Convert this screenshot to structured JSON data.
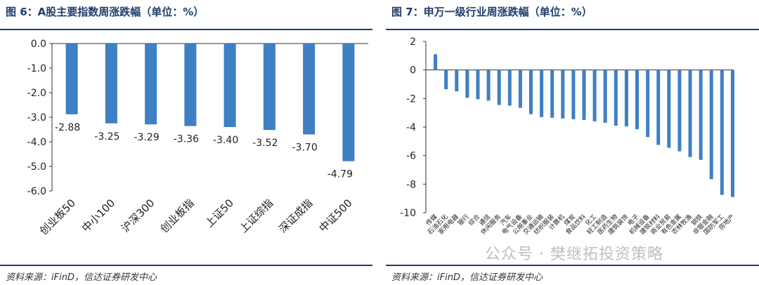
{
  "left_panel": {
    "title": "图 6：A股主要指数周涨跌幅（单位：%）",
    "source": "资料来源：iFinD，信达证券研发中心"
  },
  "right_panel": {
    "title": "图 7：申万一级行业周涨跌幅（单位：%）",
    "source": "资料来源：iFinD，信达证券研发中心"
  },
  "watermark": "公众号 · 樊继拓投资策略",
  "colors": {
    "bar": "#3f7fc3",
    "accent": "#1f3d6b",
    "axis": "#333333"
  },
  "chart_data": [
    {
      "type": "bar",
      "title": "图 6：A股主要指数周涨跌幅（单位：%）",
      "categories": [
        "创业板50",
        "中小100",
        "沪深300",
        "创业板指",
        "上证50",
        "上证综指",
        "深证成指",
        "中证500"
      ],
      "values": [
        -2.88,
        -3.25,
        -3.29,
        -3.36,
        -3.4,
        -3.52,
        -3.7,
        -4.79
      ],
      "data_labels": [
        "-2.88",
        "-3.25",
        "-3.29",
        "-3.36",
        "-3.40",
        "-3.52",
        "-3.70",
        "-4.79"
      ],
      "ylim": [
        -6.0,
        0.0
      ],
      "yticks": [
        "0.0",
        "-1.0",
        "-2.0",
        "-3.0",
        "-4.0",
        "-5.0",
        "-6.0"
      ],
      "xlabel": "",
      "ylabel": "",
      "grid": false
    },
    {
      "type": "bar",
      "title": "图 7：申万一级行业周涨跌幅（单位：%）",
      "categories": [
        "传媒",
        "石油石化",
        "家用电器",
        "银行",
        "综合",
        "通信",
        "休闲服务",
        "汽车",
        "电气设备",
        "公用事业",
        "交通运输",
        "纺织服装",
        "计算机",
        "煤炭",
        "食品饮料",
        "化工",
        "轻工制造",
        "医药生物",
        "建筑装饰",
        "电子",
        "机械设备",
        "建筑材料",
        "商业贸易",
        "有色金属",
        "农林牧渔",
        "钢铁",
        "非银金融",
        "国防军工",
        "房地产"
      ],
      "values": [
        1.1,
        -1.35,
        -1.5,
        -1.95,
        -2.05,
        -2.15,
        -2.45,
        -2.5,
        -2.65,
        -3.1,
        -3.3,
        -3.35,
        -3.4,
        -3.45,
        -3.5,
        -3.6,
        -3.7,
        -3.9,
        -3.95,
        -4.15,
        -4.7,
        -5.25,
        -5.45,
        -5.7,
        -6.1,
        -6.3,
        -7.65,
        -8.75,
        -8.9
      ],
      "ylim": [
        -10,
        2
      ],
      "yticks": [
        "2",
        "0",
        "-2",
        "-4",
        "-6",
        "-8",
        "-10"
      ],
      "xlabel": "",
      "ylabel": "",
      "grid": false
    }
  ]
}
